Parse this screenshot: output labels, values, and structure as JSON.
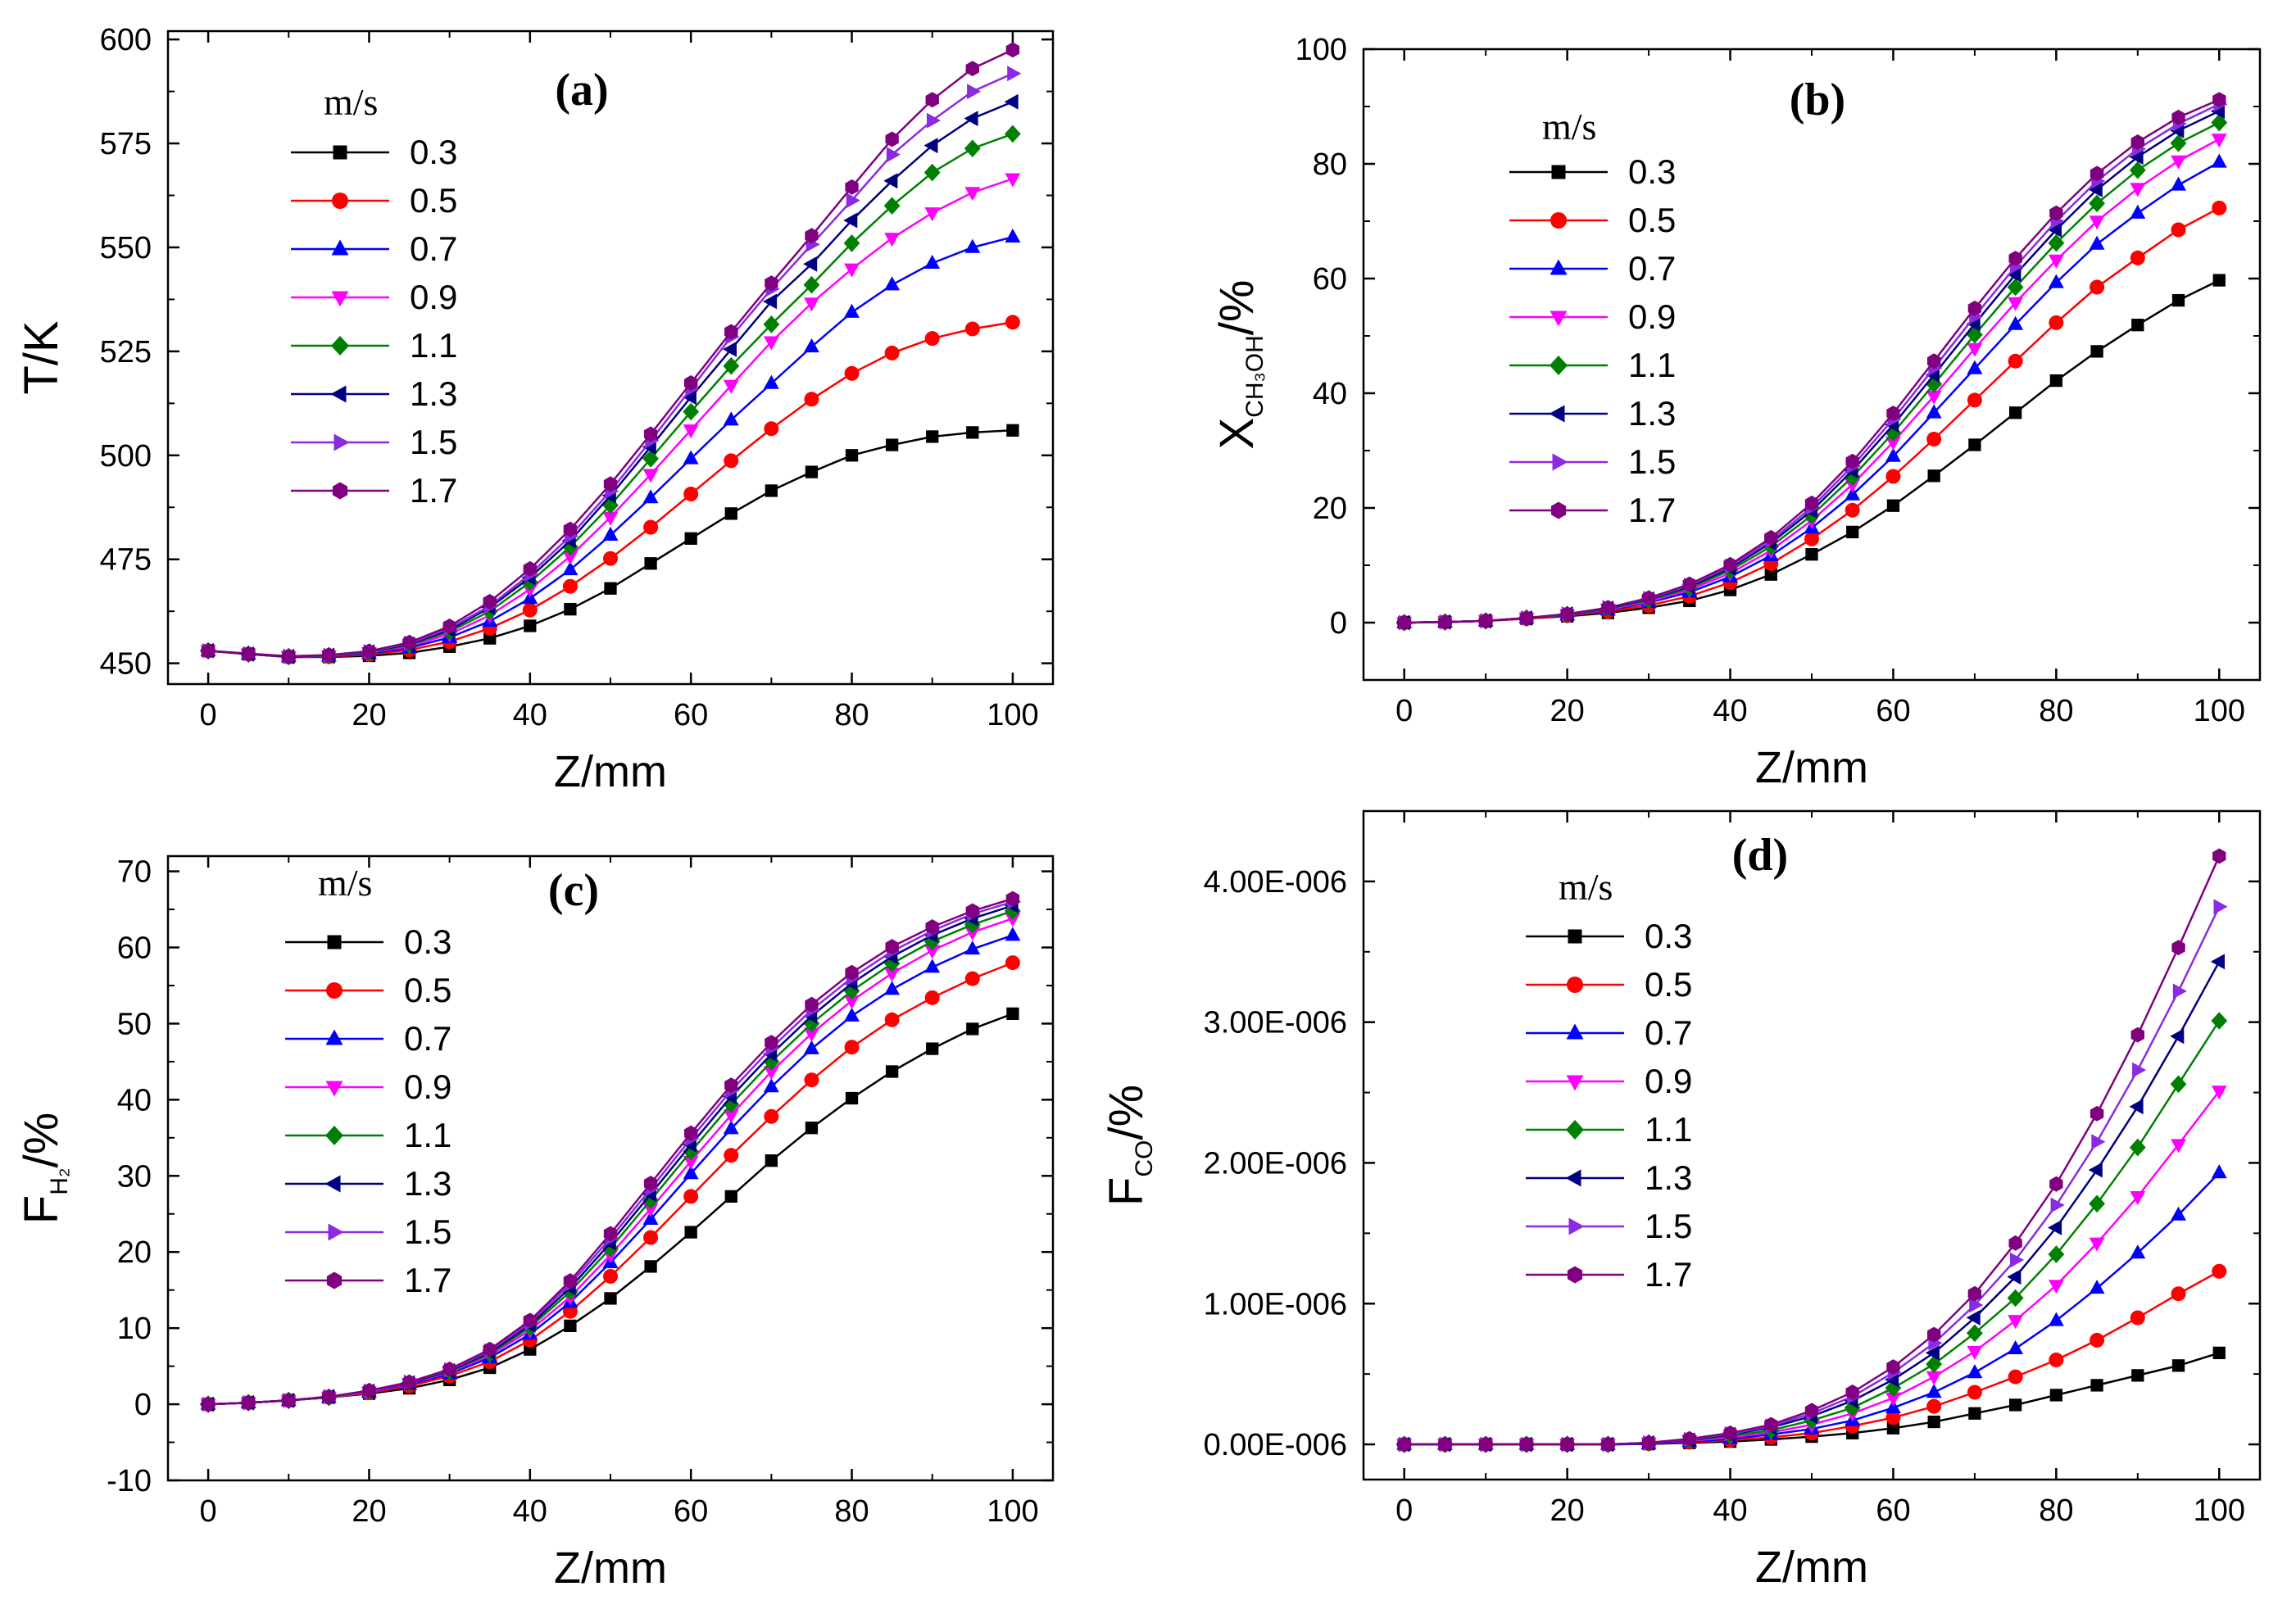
{
  "figure": {
    "description_note": ""
  },
  "chart_data": [
    {
      "type": "line",
      "panel_label": "(a)",
      "xlabel": "Z/mm",
      "ylabel": "T/K",
      "ylabel_sub": "",
      "xlim": [
        -5,
        105
      ],
      "ylim": [
        445,
        602
      ],
      "xticks": [
        0,
        20,
        40,
        60,
        80,
        100
      ],
      "yticks": [
        450,
        475,
        500,
        525,
        550,
        575,
        600
      ],
      "ytick_labels": [
        "450",
        "475",
        "500",
        "525",
        "550",
        "575",
        "600"
      ],
      "legend_title": "m/s",
      "x": [
        0,
        5,
        10,
        15,
        20,
        25,
        30,
        35,
        40,
        45,
        50,
        55,
        60,
        65,
        70,
        75,
        80,
        85,
        90,
        95,
        100
      ],
      "series": [
        {
          "name": "0.3",
          "values": [
            453,
            452.2,
            451.5,
            451.5,
            451.8,
            452.5,
            454,
            456,
            459,
            463,
            468,
            474,
            480,
            486,
            491.5,
            496,
            500,
            502.5,
            504.5,
            505.5,
            506
          ]
        },
        {
          "name": "0.5",
          "values": [
            453,
            452.2,
            451.5,
            451.6,
            452.1,
            453.2,
            455.2,
            458.4,
            462.8,
            468.5,
            475.2,
            482.7,
            490.7,
            498.7,
            506.4,
            513.5,
            519.7,
            524.6,
            528.1,
            530.4,
            532
          ]
        },
        {
          "name": "0.7",
          "values": [
            453,
            452.2,
            451.6,
            451.7,
            452.3,
            453.7,
            456.2,
            460.1,
            465.6,
            472.5,
            480.8,
            489.8,
            499.2,
            508.5,
            517.3,
            526.1,
            534.4,
            541,
            546.2,
            550,
            552.5
          ]
        },
        {
          "name": "0.9",
          "values": [
            453,
            452.2,
            451.6,
            451.8,
            452.5,
            454.1,
            457,
            461.5,
            467.8,
            475.7,
            485.1,
            495.4,
            506.1,
            516.8,
            527.3,
            536.6,
            544.8,
            552.2,
            558.3,
            563.2,
            566.5
          ]
        },
        {
          "name": "1.1",
          "values": [
            453,
            452.2,
            451.6,
            451.8,
            452.6,
            454.4,
            457.6,
            462.5,
            469.5,
            478,
            488,
            499.2,
            510.5,
            521.5,
            531.5,
            541,
            551,
            560,
            568,
            573.8,
            577.3
          ]
        },
        {
          "name": "1.3",
          "values": [
            453,
            452.2,
            451.6,
            451.9,
            452.7,
            454.6,
            458,
            463.4,
            470.6,
            479.5,
            490.3,
            502,
            514,
            525.5,
            537,
            546,
            556.5,
            566,
            574.5,
            581,
            585
          ]
        },
        {
          "name": "1.5",
          "values": [
            453,
            452.3,
            451.7,
            451.9,
            452.8,
            454.8,
            458.4,
            463.8,
            471.4,
            480.6,
            491.4,
            503.5,
            516,
            528.5,
            540,
            550.7,
            561.3,
            572.3,
            580.5,
            587.5,
            591.8
          ]
        },
        {
          "name": "1.7",
          "values": [
            453,
            452.3,
            451.7,
            452,
            452.9,
            455,
            458.9,
            464.8,
            472.7,
            482.2,
            493.1,
            505.1,
            517.4,
            529.7,
            541.4,
            552.8,
            564.5,
            576,
            585.5,
            593,
            597.5
          ]
        }
      ]
    },
    {
      "type": "line",
      "panel_label": "(b)",
      "xlabel": "Z/mm",
      "ylabel": "X",
      "ylabel_sub": "CH₃OH",
      "ylabel_suffix": "/%",
      "xlim": [
        -5,
        105
      ],
      "ylim": [
        -10,
        100
      ],
      "xticks": [
        0,
        20,
        40,
        60,
        80,
        100
      ],
      "yticks": [
        0,
        20,
        40,
        60,
        80,
        100
      ],
      "ytick_labels": [
        "0",
        "20",
        "40",
        "60",
        "80",
        "100"
      ],
      "legend_title": "m/s",
      "x": [
        0,
        5,
        10,
        15,
        20,
        25,
        30,
        35,
        40,
        45,
        50,
        55,
        60,
        65,
        70,
        75,
        80,
        85,
        90,
        95,
        100
      ],
      "series": [
        {
          "name": "0.3",
          "values": [
            0,
            0.1,
            0.3,
            0.7,
            1.1,
            1.7,
            2.6,
            3.8,
            5.7,
            8.4,
            11.9,
            15.8,
            20.4,
            25.6,
            31,
            36.6,
            42.2,
            47.3,
            51.9,
            56.2,
            59.7
          ]
        },
        {
          "name": "0.5",
          "values": [
            0,
            0.1,
            0.3,
            0.7,
            1.2,
            2,
            3,
            4.6,
            7,
            10.3,
            14.6,
            19.6,
            25.5,
            32,
            38.8,
            45.6,
            52.3,
            58.5,
            63.6,
            68.5,
            72.3
          ]
        },
        {
          "name": "0.7",
          "values": [
            0,
            0.1,
            0.3,
            0.8,
            1.3,
            2.2,
            3.5,
            5.3,
            8,
            11.7,
            16.5,
            22.3,
            29,
            36.6,
            44.3,
            52,
            59.3,
            66,
            71.4,
            76.3,
            80.3
          ]
        },
        {
          "name": "0.9",
          "values": [
            0,
            0.1,
            0.3,
            0.8,
            1.4,
            2.3,
            3.7,
            5.7,
            8.6,
            12.6,
            17.8,
            24.1,
            31.5,
            39.5,
            47.8,
            55.8,
            63.2,
            70,
            75.7,
            80.5,
            84.3
          ]
        },
        {
          "name": "1.1",
          "values": [
            0,
            0.1,
            0.3,
            0.8,
            1.4,
            2.4,
            3.9,
            6,
            9.1,
            13.3,
            18.7,
            25.4,
            33.1,
            41.6,
            50.2,
            58.5,
            66.2,
            73.1,
            78.9,
            83.6,
            87.2
          ]
        },
        {
          "name": "1.3",
          "values": [
            0,
            0.1,
            0.3,
            0.8,
            1.5,
            2.5,
            4.1,
            6.3,
            9.5,
            13.9,
            19.5,
            26.5,
            34.5,
            43.2,
            52.1,
            60.7,
            68.5,
            75.5,
            81.2,
            85.8,
            89.2
          ]
        },
        {
          "name": "1.5",
          "values": [
            0,
            0.1,
            0.3,
            0.8,
            1.5,
            2.6,
            4.2,
            6.5,
            9.8,
            14.3,
            20.1,
            27.3,
            35.5,
            44.4,
            53.4,
            62.1,
            70,
            77,
            82.6,
            87,
            90.4
          ]
        },
        {
          "name": "1.7",
          "values": [
            0,
            0.1,
            0.3,
            0.8,
            1.5,
            2.6,
            4.3,
            6.7,
            10.1,
            14.8,
            20.8,
            28.1,
            36.5,
            45.6,
            54.8,
            63.5,
            71.4,
            78.3,
            83.8,
            88.1,
            91.2
          ]
        }
      ]
    },
    {
      "type": "line",
      "panel_label": "(c)",
      "xlabel": "Z/mm",
      "ylabel": "F",
      "ylabel_sub": "H₂",
      "ylabel_suffix": "/%",
      "xlim": [
        -5,
        105
      ],
      "ylim": [
        -10,
        72
      ],
      "xticks": [
        0,
        20,
        40,
        60,
        80,
        100
      ],
      "yticks": [
        -10,
        0,
        10,
        20,
        30,
        40,
        50,
        60,
        70
      ],
      "ytick_labels": [
        "-10",
        "0",
        "10",
        "20",
        "30",
        "40",
        "50",
        "60",
        "70"
      ],
      "legend_title": "m/s",
      "x": [
        0,
        5,
        10,
        15,
        20,
        25,
        30,
        35,
        40,
        45,
        50,
        55,
        60,
        65,
        70,
        75,
        80,
        85,
        90,
        95,
        100
      ],
      "series": [
        {
          "name": "0.3",
          "values": [
            0,
            0.2,
            0.5,
            0.9,
            1.4,
            2.1,
            3.2,
            4.8,
            7.2,
            10.3,
            13.9,
            18.1,
            22.6,
            27.3,
            32,
            36.3,
            40.2,
            43.7,
            46.7,
            49.3,
            51.3
          ]
        },
        {
          "name": "0.5",
          "values": [
            0,
            0.2,
            0.5,
            0.9,
            1.5,
            2.4,
            3.7,
            5.6,
            8.4,
            12.2,
            16.8,
            21.9,
            27.3,
            32.7,
            37.8,
            42.6,
            46.9,
            50.5,
            53.4,
            55.9,
            58
          ]
        },
        {
          "name": "0.7",
          "values": [
            0,
            0.2,
            0.5,
            0.9,
            1.6,
            2.6,
            4,
            6.1,
            9.2,
            13.4,
            18.6,
            24.3,
            30.3,
            36.2,
            41.7,
            46.7,
            51,
            54.5,
            57.4,
            59.8,
            61.6
          ]
        },
        {
          "name": "0.9",
          "values": [
            0,
            0.2,
            0.5,
            0.9,
            1.6,
            2.7,
            4.2,
            6.4,
            9.7,
            14.1,
            19.6,
            25.7,
            31.9,
            38,
            43.7,
            48.7,
            53,
            56.6,
            59.6,
            62,
            63.8
          ]
        },
        {
          "name": "1.1",
          "values": [
            0,
            0.2,
            0.5,
            0.9,
            1.7,
            2.8,
            4.3,
            6.6,
            10.1,
            14.8,
            20.5,
            26.8,
            33.2,
            39.4,
            45,
            50,
            54.3,
            57.9,
            60.8,
            63,
            64.8
          ]
        },
        {
          "name": "1.3",
          "values": [
            0,
            0.2,
            0.5,
            1,
            1.7,
            2.8,
            4.4,
            6.8,
            10.4,
            15.3,
            21.2,
            27.6,
            34.1,
            40.4,
            46,
            51,
            55.3,
            58.8,
            61.6,
            63.8,
            65.5
          ]
        },
        {
          "name": "1.5",
          "values": [
            0,
            0.2,
            0.5,
            1,
            1.7,
            2.9,
            4.5,
            7,
            10.7,
            15.8,
            21.8,
            28.3,
            34.9,
            41.2,
            46.8,
            51.8,
            56,
            59.5,
            62.2,
            64.4,
            66
          ]
        },
        {
          "name": "1.7",
          "values": [
            0,
            0.2,
            0.5,
            1,
            1.8,
            2.9,
            4.6,
            7.2,
            11,
            16.2,
            22.4,
            29,
            35.6,
            41.9,
            47.5,
            52.5,
            56.7,
            60.1,
            62.7,
            64.8,
            66.4
          ]
        }
      ]
    },
    {
      "type": "line",
      "panel_label": "(d)",
      "xlabel": "Z/mm",
      "ylabel": "F",
      "ylabel_sub": "CO",
      "ylabel_suffix": "/%",
      "xlim": [
        -5,
        105
      ],
      "ylim": [
        -2.5e-07,
        4.5e-06
      ],
      "xticks": [
        0,
        20,
        40,
        60,
        80,
        100
      ],
      "yticks": [
        0,
        1e-06,
        2e-06,
        3e-06,
        4e-06
      ],
      "ytick_labels": [
        "0.00E-006",
        "1.00E-006",
        "2.00E-006",
        "3.00E-006",
        "4.00E-006"
      ],
      "legend_title": "m/s",
      "x": [
        0,
        5,
        10,
        15,
        20,
        25,
        30,
        35,
        40,
        45,
        50,
        55,
        60,
        65,
        70,
        75,
        80,
        85,
        90,
        95,
        100
      ],
      "series": [
        {
          "name": "0.3",
          "values": [
            0,
            0,
            0,
            0,
            0,
            0,
            3e-09,
            1e-08,
            2e-08,
            3.5e-08,
            5.5e-08,
            8e-08,
            1.15e-07,
            1.6e-07,
            2.2e-07,
            2.8e-07,
            3.5e-07,
            4.2e-07,
            4.9e-07,
            5.6e-07,
            6.5e-07
          ]
        },
        {
          "name": "0.5",
          "values": [
            0,
            0,
            0,
            0,
            0,
            0,
            5e-09,
            1.5e-08,
            3e-08,
            5e-08,
            8e-08,
            1.3e-07,
            1.9e-07,
            2.7e-07,
            3.7e-07,
            4.8e-07,
            6e-07,
            7.4e-07,
            9e-07,
            1.07e-06,
            1.23e-06
          ]
        },
        {
          "name": "0.7",
          "values": [
            0,
            0,
            0,
            0,
            0,
            0,
            5e-09,
            2e-08,
            4e-08,
            7e-08,
            1.1e-07,
            1.7e-07,
            2.6e-07,
            3.7e-07,
            5.1e-07,
            6.8e-07,
            8.8e-07,
            1.11e-06,
            1.36e-06,
            1.63e-06,
            1.93e-06
          ]
        },
        {
          "name": "0.9",
          "values": [
            0,
            0,
            0,
            0,
            0,
            0,
            1e-08,
            2.5e-08,
            5e-08,
            8.5e-08,
            1.4e-07,
            2.2e-07,
            3.3e-07,
            4.8e-07,
            6.6e-07,
            8.8e-07,
            1.13e-06,
            1.43e-06,
            1.76e-06,
            2.13e-06,
            2.51e-06
          ]
        },
        {
          "name": "1.1",
          "values": [
            0,
            0,
            0,
            0,
            0,
            0,
            1e-08,
            3e-08,
            6e-08,
            1e-07,
            1.7e-07,
            2.6e-07,
            4e-07,
            5.7e-07,
            7.9e-07,
            1.04e-06,
            1.35e-06,
            1.71e-06,
            2.11e-06,
            2.56e-06,
            3.01e-06
          ]
        },
        {
          "name": "1.3",
          "values": [
            0,
            0,
            0,
            0,
            0,
            0,
            1e-08,
            3e-08,
            7e-08,
            1.2e-07,
            2e-07,
            3.1e-07,
            4.6e-07,
            6.5e-07,
            9e-07,
            1.19e-06,
            1.54e-06,
            1.95e-06,
            2.4e-06,
            2.9e-06,
            3.43e-06
          ]
        },
        {
          "name": "1.5",
          "values": [
            0,
            0,
            0,
            0,
            0,
            0,
            1e-08,
            3.5e-08,
            7.5e-08,
            1.3e-07,
            2.2e-07,
            3.4e-07,
            5.1e-07,
            7.2e-07,
            9.9e-07,
            1.31e-06,
            1.7e-06,
            2.15e-06,
            2.66e-06,
            3.22e-06,
            3.82e-06
          ]
        },
        {
          "name": "1.7",
          "values": [
            0,
            0,
            0,
            0,
            0,
            0,
            1.2e-08,
            4e-08,
            8e-08,
            1.4e-07,
            2.4e-07,
            3.7e-07,
            5.5e-07,
            7.8e-07,
            1.07e-06,
            1.43e-06,
            1.85e-06,
            2.35e-06,
            2.91e-06,
            3.53e-06,
            4.18e-06
          ]
        }
      ]
    }
  ],
  "series_styles": [
    {
      "color": "#000000",
      "marker": "square"
    },
    {
      "color": "#ff0000",
      "marker": "circle"
    },
    {
      "color": "#0000ff",
      "marker": "triangle-up"
    },
    {
      "color": "#ff00ff",
      "marker": "triangle-down"
    },
    {
      "color": "#008000",
      "marker": "diamond"
    },
    {
      "color": "#000080",
      "marker": "triangle-left"
    },
    {
      "color": "#8a2be2",
      "marker": "triangle-right"
    },
    {
      "color": "#800080",
      "marker": "hexagon"
    }
  ]
}
